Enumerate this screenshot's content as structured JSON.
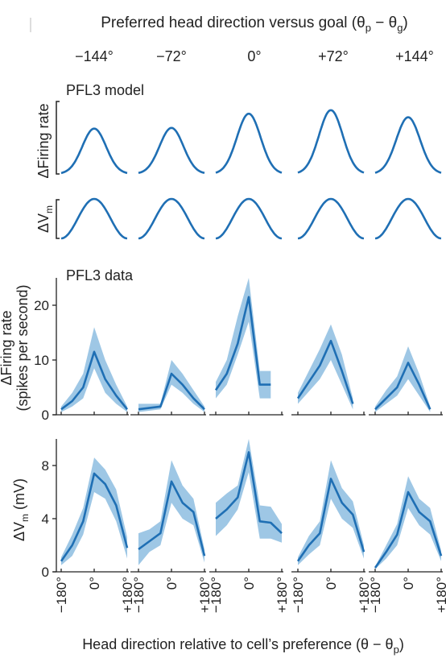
{
  "figure": {
    "top_title": "Preferred head direction versus goal (θ",
    "top_title_sub_p": "p",
    "top_title_mid": " − θ",
    "top_title_sub_g": "g",
    "top_title_end": ")",
    "columns": [
      "−144°",
      "−72°",
      "0°",
      "+72°",
      "+144°"
    ],
    "bottom_xlabel": "Head direction relative to cell’s preference (θ − θ",
    "bottom_xlabel_sub": "p",
    "bottom_xlabel_end": ")",
    "x_ticks": [
      "−180°",
      "0°",
      "+180°"
    ]
  },
  "model": {
    "title": "PFL3 model",
    "firing_label": "ΔFiring rate",
    "vm_label_prefix": "ΔV",
    "vm_label_sub": "m"
  },
  "data": {
    "title": "PFL3 data",
    "firing_label_line1": "ΔFiring rate",
    "firing_label_line2": "(spikes per second)",
    "vm_label_prefix": "ΔV",
    "vm_label_sub": "m",
    "vm_label_suffix": " (mV)"
  },
  "chart_data": [
    {
      "type": "line",
      "title": "PFL3 model",
      "ylabel": "ΔFiring rate",
      "x": [
        -180,
        180
      ],
      "series": [
        {
          "name": "−144°",
          "amplitude": 0.64
        },
        {
          "name": "−72°",
          "amplitude": 0.65
        },
        {
          "name": "0°",
          "amplitude": 0.85
        },
        {
          "name": "+72°",
          "amplitude": 0.9
        },
        {
          "name": "+144°",
          "amplitude": 0.8
        }
      ],
      "line_color": "#1f6fb4"
    },
    {
      "type": "line",
      "ylabel": "ΔVm",
      "x": [
        -180,
        180
      ],
      "series": [
        {
          "name": "−144°",
          "amplitude": 1.0
        },
        {
          "name": "−72°",
          "amplitude": 1.0
        },
        {
          "name": "0°",
          "amplitude": 1.0
        },
        {
          "name": "+72°",
          "amplitude": 1.0
        },
        {
          "name": "+144°",
          "amplitude": 1.0
        }
      ],
      "line_color": "#1f6fb4"
    },
    {
      "type": "line",
      "title": "PFL3 data",
      "xlabel": "",
      "ylabel": "ΔFiring rate (spikes per second)",
      "ylim": [
        0,
        25
      ],
      "yticks": [
        0,
        10,
        20
      ],
      "x": [
        -180,
        -120,
        -60,
        0,
        60,
        120,
        180
      ],
      "series": [
        {
          "name": "−144°",
          "mean": [
            1,
            2.5,
            5,
            11.5,
            6.5,
            3.5,
            1
          ],
          "lower": [
            0.5,
            1.5,
            3,
            8.5,
            4,
            2,
            0.5
          ],
          "upper": [
            1.5,
            4,
            7.5,
            16,
            10,
            5.5,
            1.5
          ]
        },
        {
          "name": "−72°",
          "mean": [
            1,
            null,
            1.5,
            7.5,
            5.5,
            3,
            1
          ],
          "lower": [
            0.5,
            null,
            1,
            5.5,
            4,
            2,
            0.5
          ],
          "upper": [
            2,
            null,
            2,
            10,
            7.5,
            4.5,
            1.5
          ]
        },
        {
          "name": "0°",
          "mean": [
            4.5,
            7.5,
            13,
            21.5,
            5.5,
            5.5,
            null
          ],
          "lower": [
            3,
            5.5,
            11,
            17,
            3,
            3,
            null
          ],
          "upper": [
            6,
            10,
            18,
            25,
            8,
            8,
            null
          ]
        },
        {
          "name": "+72°",
          "mean": [
            3,
            null,
            9,
            13.5,
            8,
            2,
            null
          ],
          "lower": [
            2,
            null,
            6.5,
            10,
            5.5,
            1,
            null
          ],
          "upper": [
            4,
            null,
            12,
            16.5,
            11,
            3,
            null
          ]
        },
        {
          "name": "+144°",
          "mean": [
            1,
            3,
            5,
            9.5,
            5.5,
            1,
            null
          ],
          "lower": [
            0.5,
            2,
            3.5,
            6.5,
            3.5,
            0.5,
            null
          ],
          "upper": [
            1.5,
            4.5,
            7,
            12.5,
            7.5,
            1.5,
            null
          ]
        }
      ],
      "line_color": "#1f6fb4",
      "band_color": "#8dbde0"
    },
    {
      "type": "line",
      "ylabel": "ΔVm (mV)",
      "ylim": [
        0,
        10
      ],
      "yticks": [
        0,
        4,
        8
      ],
      "x": [
        -180,
        -120,
        -60,
        0,
        60,
        120,
        180
      ],
      "series": [
        {
          "name": "−144°",
          "mean": [
            0.8,
            2,
            3.8,
            7.4,
            6.6,
            5,
            1.8
          ],
          "lower": [
            0.5,
            1.2,
            2.8,
            6,
            5.5,
            3.8,
            1
          ],
          "upper": [
            1.1,
            2.8,
            4.8,
            8.6,
            7.7,
            6.2,
            2.6
          ]
        },
        {
          "name": "−72°",
          "mean": [
            1.7,
            2.3,
            2.9,
            6.8,
            5.2,
            4.5,
            1.2
          ],
          "lower": [
            0.5,
            1.5,
            2,
            5.2,
            4,
            3.5,
            0.7
          ],
          "upper": [
            2.9,
            3.2,
            3.8,
            8.4,
            6.5,
            5.5,
            1.7
          ]
        },
        {
          "name": "0°",
          "mean": [
            4,
            4.7,
            5.6,
            9,
            3.8,
            3.7,
            2.9
          ],
          "lower": [
            2.7,
            3.5,
            4.7,
            7.5,
            2.5,
            2.5,
            2.2
          ],
          "upper": [
            5.2,
            5.9,
            6.5,
            10,
            5,
            4.9,
            3.6
          ]
        },
        {
          "name": "+72°",
          "mean": [
            0.8,
            2,
            2.9,
            7,
            5.2,
            4.3,
            1.5
          ],
          "lower": [
            0.5,
            1.3,
            2,
            5.5,
            4,
            3.3,
            1
          ],
          "upper": [
            1.1,
            2.7,
            3.8,
            8.4,
            6.3,
            5.3,
            2
          ]
        },
        {
          "name": "+144°",
          "mean": [
            0.3,
            1.5,
            2.8,
            6,
            4.5,
            3.8,
            1.2
          ],
          "lower": [
            0.2,
            1,
            2,
            4.8,
            3.5,
            2.8,
            0.8
          ],
          "upper": [
            0.4,
            2,
            3.6,
            7.2,
            5.5,
            4.8,
            1.6
          ]
        }
      ],
      "line_color": "#1f6fb4",
      "band_color": "#8dbde0"
    }
  ]
}
